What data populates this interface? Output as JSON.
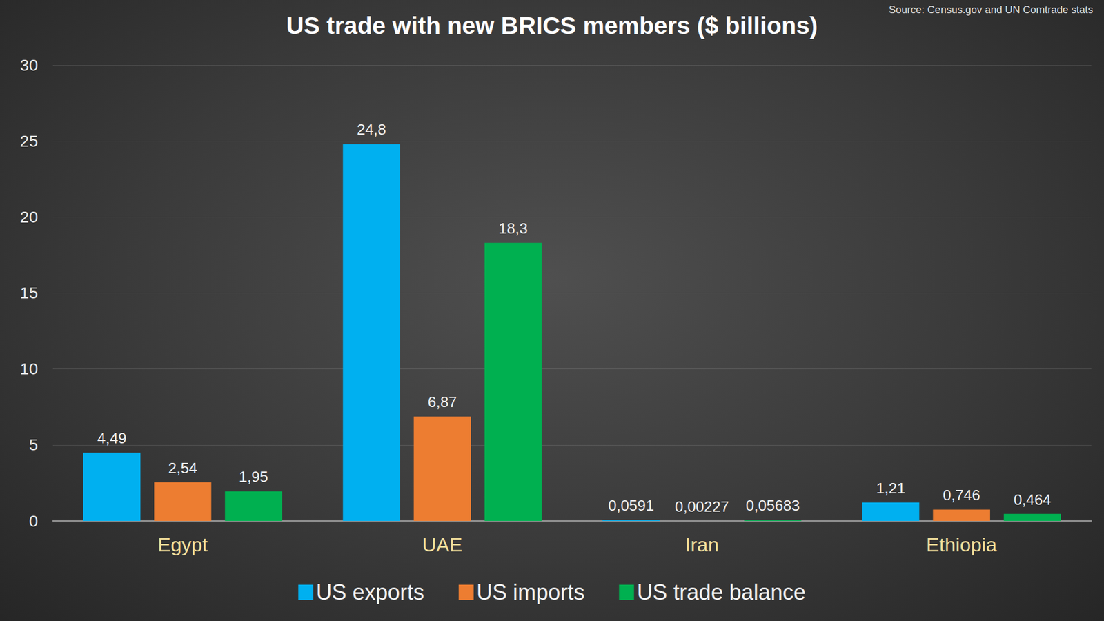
{
  "chart_data": {
    "type": "bar",
    "title": "US trade with new BRICS members ($ billions)",
    "source": "Source: Census.gov and UN Comtrade stats",
    "categories": [
      "Egypt",
      "UAE",
      "Iran",
      "Ethiopia"
    ],
    "series": [
      {
        "name": "US exports",
        "color": "#00b0f0",
        "values": [
          4.49,
          24.8,
          0.0591,
          1.21
        ],
        "value_labels": [
          "4,49",
          "24,8",
          "0,0591",
          "1,21"
        ]
      },
      {
        "name": "US imports",
        "color": "#ed7d31",
        "values": [
          2.54,
          6.87,
          0.00227,
          0.746
        ],
        "value_labels": [
          "2,54",
          "6,87",
          "0,00227",
          "0,746"
        ]
      },
      {
        "name": "US trade balance",
        "color": "#00b050",
        "values": [
          1.95,
          18.3,
          0.05683,
          0.464
        ],
        "value_labels": [
          "1,95",
          "18,3",
          "0,05683",
          "0,464"
        ]
      }
    ],
    "ylim": [
      0,
      30
    ],
    "yticks": [
      0,
      5,
      10,
      15,
      20,
      25,
      30
    ],
    "grid": true,
    "data_labels": true,
    "legend": "bottom"
  }
}
